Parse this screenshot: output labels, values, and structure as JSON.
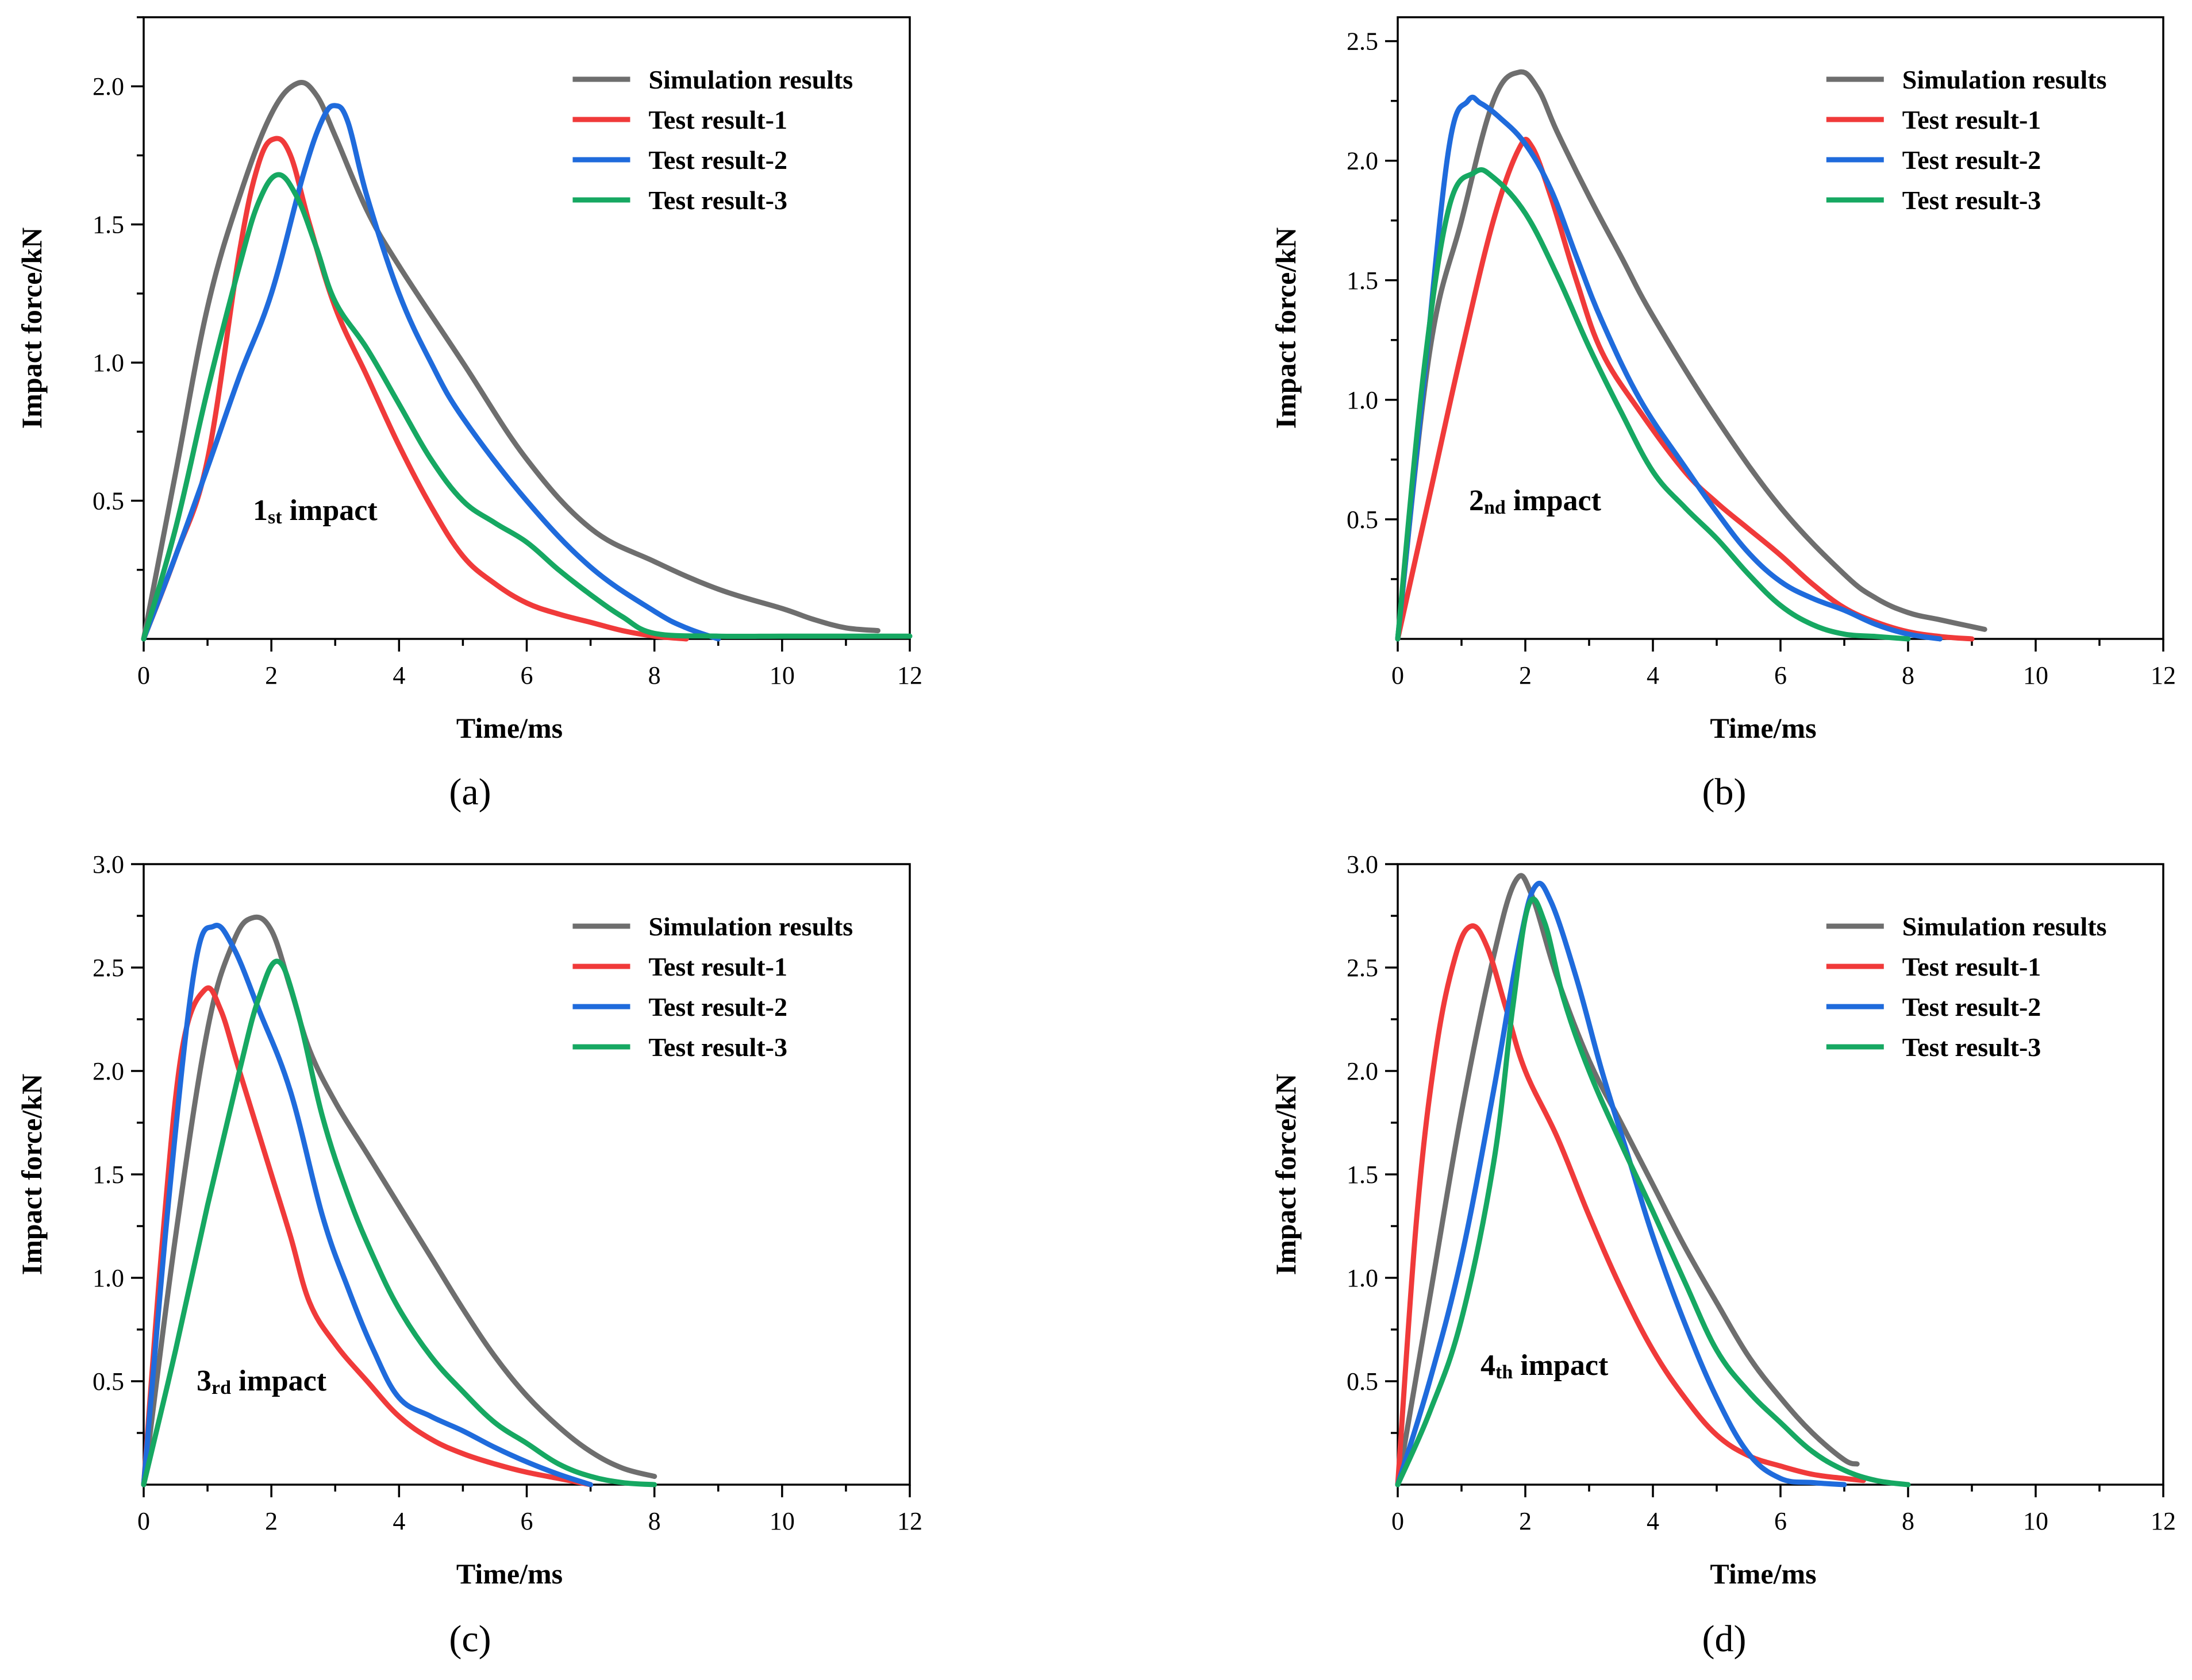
{
  "chart_data": [
    {
      "type": "line",
      "caption": "a",
      "annotation": {
        "main": "1",
        "sub": "st",
        "rest": " impact"
      },
      "xlabel": "Time/ms",
      "ylabel": "Impact force/kN",
      "xlim": [
        0,
        12
      ],
      "ylim": [
        0,
        2.25
      ],
      "xticks": [
        0,
        2,
        4,
        6,
        8,
        10,
        12
      ],
      "yticks": [
        0.5,
        1.0,
        1.5,
        2.0
      ],
      "yticklabels": [
        "0.5",
        "1.0",
        "1.5",
        "2.0"
      ],
      "legend": "top-right",
      "series": [
        {
          "name": "Simulation results",
          "color": "#6e6e6e",
          "x": [
            0,
            0.5,
            1.0,
            1.5,
            2.0,
            2.4,
            2.7,
            3.0,
            3.5,
            4.0,
            5.0,
            6.0,
            7.0,
            8.0,
            9.0,
            10.0,
            10.5,
            11.0,
            11.5
          ],
          "y": [
            0,
            0.6,
            1.2,
            1.6,
            1.9,
            2.01,
            1.97,
            1.82,
            1.55,
            1.35,
            1.0,
            0.65,
            0.4,
            0.28,
            0.18,
            0.11,
            0.07,
            0.04,
            0.03
          ]
        },
        {
          "name": "Test result-1",
          "color": "#f03a3a",
          "x": [
            0,
            0.5,
            1.0,
            1.5,
            1.8,
            2.05,
            2.3,
            2.6,
            3.0,
            3.5,
            4.0,
            4.5,
            5.0,
            5.5,
            6.0,
            6.5,
            7.0,
            7.5,
            8.0,
            8.5
          ],
          "y": [
            0,
            0.3,
            0.65,
            1.4,
            1.72,
            1.81,
            1.75,
            1.5,
            1.2,
            0.95,
            0.7,
            0.48,
            0.3,
            0.2,
            0.13,
            0.09,
            0.06,
            0.03,
            0.01,
            0
          ]
        },
        {
          "name": "Test result-2",
          "color": "#1f6bdc",
          "x": [
            0,
            0.5,
            1.0,
            1.5,
            2.0,
            2.5,
            2.8,
            3.0,
            3.2,
            3.5,
            4.0,
            4.5,
            5.0,
            6.0,
            7.0,
            8.0,
            8.5,
            9.0
          ],
          "y": [
            0,
            0.3,
            0.62,
            0.95,
            1.25,
            1.68,
            1.88,
            1.93,
            1.87,
            1.6,
            1.25,
            1.0,
            0.8,
            0.5,
            0.26,
            0.1,
            0.04,
            0
          ]
        },
        {
          "name": "Test result-3",
          "color": "#16a862",
          "x": [
            0,
            0.5,
            1.0,
            1.5,
            1.8,
            2.1,
            2.4,
            2.7,
            3.0,
            3.5,
            4.0,
            4.5,
            5.0,
            5.5,
            6.0,
            6.5,
            7.0,
            7.5,
            8.0,
            9.0,
            10.0,
            11.0,
            12.0
          ],
          "y": [
            0,
            0.4,
            0.9,
            1.35,
            1.58,
            1.68,
            1.6,
            1.42,
            1.22,
            1.05,
            0.85,
            0.65,
            0.5,
            0.42,
            0.35,
            0.25,
            0.16,
            0.08,
            0.02,
            0.01,
            0.01,
            0.01,
            0.01
          ]
        }
      ]
    },
    {
      "type": "line",
      "caption": "b",
      "annotation": {
        "main": "2",
        "sub": "nd",
        "rest": " impact"
      },
      "xlabel": "Time/ms",
      "ylabel": "Impact force/kN",
      "xlim": [
        0,
        12
      ],
      "ylim": [
        0,
        2.6
      ],
      "xticks": [
        0,
        2,
        4,
        6,
        8,
        10,
        12
      ],
      "yticks": [
        0.5,
        1.0,
        1.5,
        2.0,
        2.5
      ],
      "yticklabels": [
        "0.5",
        "1.0",
        "1.5",
        "2.0",
        "2.5"
      ],
      "legend": "top-right",
      "series": [
        {
          "name": "Simulation results",
          "color": "#6e6e6e",
          "x": [
            0,
            0.5,
            1.0,
            1.5,
            1.9,
            2.2,
            2.5,
            3.0,
            3.5,
            4.0,
            5.0,
            6.0,
            7.0,
            7.5,
            8.0,
            8.5,
            9.2
          ],
          "y": [
            0,
            1.2,
            1.75,
            2.25,
            2.37,
            2.3,
            2.12,
            1.85,
            1.6,
            1.35,
            0.92,
            0.55,
            0.27,
            0.17,
            0.11,
            0.08,
            0.04
          ]
        },
        {
          "name": "Test result-1",
          "color": "#f03a3a",
          "x": [
            0,
            0.5,
            1.0,
            1.5,
            1.9,
            2.1,
            2.4,
            2.8,
            3.2,
            3.8,
            4.5,
            5.0,
            5.5,
            6.0,
            6.5,
            7.0,
            7.5,
            8.0,
            8.5,
            9.0
          ],
          "y": [
            0,
            0.6,
            1.2,
            1.75,
            2.05,
            2.06,
            1.85,
            1.5,
            1.2,
            0.95,
            0.7,
            0.57,
            0.46,
            0.35,
            0.23,
            0.13,
            0.07,
            0.03,
            0.01,
            0
          ]
        },
        {
          "name": "Test result-2",
          "color": "#1f6bdc",
          "x": [
            0,
            0.4,
            0.8,
            1.1,
            1.3,
            1.6,
            2.0,
            2.4,
            2.8,
            3.2,
            3.8,
            4.5,
            5.0,
            5.5,
            6.0,
            6.5,
            7.0,
            7.5,
            8.0,
            8.5
          ],
          "y": [
            0,
            1.05,
            2.05,
            2.25,
            2.24,
            2.18,
            2.07,
            1.88,
            1.6,
            1.33,
            1.0,
            0.72,
            0.53,
            0.36,
            0.24,
            0.17,
            0.12,
            0.06,
            0.02,
            0
          ]
        },
        {
          "name": "Test result-3",
          "color": "#16a862",
          "x": [
            0,
            0.4,
            0.8,
            1.2,
            1.5,
            2.0,
            2.5,
            3.0,
            3.5,
            4.0,
            4.5,
            5.0,
            5.5,
            6.0,
            6.5,
            7.0,
            7.5,
            8.0
          ],
          "y": [
            0,
            1.1,
            1.8,
            1.95,
            1.93,
            1.78,
            1.52,
            1.22,
            0.95,
            0.7,
            0.55,
            0.42,
            0.27,
            0.14,
            0.06,
            0.02,
            0.01,
            0
          ]
        }
      ]
    },
    {
      "type": "line",
      "caption": "c",
      "annotation": {
        "main": "3",
        "sub": "rd",
        "rest": " impact"
      },
      "xlabel": "Time/ms",
      "ylabel": "Impact force/kN",
      "xlim": [
        0,
        12
      ],
      "ylim": [
        0,
        3.0
      ],
      "xticks": [
        0,
        2,
        4,
        6,
        8,
        10,
        12
      ],
      "yticks": [
        0.5,
        1.0,
        1.5,
        2.0,
        2.5,
        3.0
      ],
      "yticklabels": [
        "0.5",
        "1.0",
        "1.5",
        "2.0",
        "2.5",
        "3.0"
      ],
      "legend": "top-right",
      "series": [
        {
          "name": "Simulation results",
          "color": "#6e6e6e",
          "x": [
            0,
            0.5,
            1.0,
            1.4,
            1.7,
            2.0,
            2.3,
            2.6,
            3.0,
            3.5,
            4.0,
            4.5,
            5.0,
            5.5,
            6.0,
            6.5,
            7.0,
            7.5,
            8.0
          ],
          "y": [
            0,
            1.2,
            2.2,
            2.62,
            2.74,
            2.68,
            2.4,
            2.1,
            1.85,
            1.6,
            1.35,
            1.1,
            0.85,
            0.62,
            0.43,
            0.28,
            0.16,
            0.08,
            0.04
          ]
        },
        {
          "name": "Test result-1",
          "color": "#f03a3a",
          "x": [
            0,
            0.3,
            0.6,
            0.95,
            1.2,
            1.5,
            2.0,
            2.3,
            2.6,
            3.0,
            3.5,
            4.0,
            4.5,
            5.0,
            5.5,
            6.0,
            6.5,
            7.0
          ],
          "y": [
            0,
            1.2,
            2.1,
            2.39,
            2.3,
            2.0,
            1.5,
            1.2,
            0.88,
            0.68,
            0.5,
            0.33,
            0.22,
            0.15,
            0.1,
            0.06,
            0.03,
            0
          ]
        },
        {
          "name": "Test result-2",
          "color": "#1f6bdc",
          "x": [
            0,
            0.4,
            0.8,
            1.1,
            1.4,
            1.8,
            2.3,
            2.8,
            3.2,
            3.6,
            4.0,
            4.5,
            5.0,
            5.5,
            6.0,
            6.5,
            7.0
          ],
          "y": [
            0,
            1.4,
            2.5,
            2.7,
            2.6,
            2.3,
            1.9,
            1.3,
            0.95,
            0.65,
            0.42,
            0.33,
            0.26,
            0.18,
            0.11,
            0.05,
            0
          ]
        },
        {
          "name": "Test result-3",
          "color": "#16a862",
          "x": [
            0,
            0.5,
            1.0,
            1.5,
            1.8,
            2.1,
            2.4,
            2.8,
            3.2,
            3.6,
            4.0,
            4.5,
            5.0,
            5.5,
            6.0,
            6.5,
            7.0,
            7.5,
            8.0
          ],
          "y": [
            0,
            0.65,
            1.35,
            2.0,
            2.35,
            2.53,
            2.3,
            1.78,
            1.4,
            1.1,
            0.85,
            0.62,
            0.45,
            0.3,
            0.2,
            0.1,
            0.04,
            0.01,
            0
          ]
        }
      ]
    },
    {
      "type": "line",
      "caption": "d",
      "annotation": {
        "main": "4",
        "sub": "th",
        "rest": " impact"
      },
      "xlabel": "Time/ms",
      "ylabel": "Impact force/kN",
      "xlim": [
        0,
        12
      ],
      "ylim": [
        0,
        3.0
      ],
      "xticks": [
        0,
        2,
        4,
        6,
        8,
        10,
        12
      ],
      "yticks": [
        0.5,
        1.0,
        1.5,
        2.0,
        2.5,
        3.0
      ],
      "yticklabels": [
        "0.5",
        "1.0",
        "1.5",
        "2.0",
        "2.5",
        "3.0"
      ],
      "legend": "top-right",
      "series": [
        {
          "name": "Simulation results",
          "color": "#6e6e6e",
          "x": [
            0,
            0.5,
            1.0,
            1.5,
            1.85,
            2.1,
            2.5,
            3.0,
            3.5,
            4.0,
            4.5,
            5.0,
            5.5,
            6.0,
            6.5,
            7.0,
            7.2
          ],
          "y": [
            0,
            0.9,
            1.8,
            2.55,
            2.92,
            2.85,
            2.45,
            2.05,
            1.75,
            1.45,
            1.15,
            0.88,
            0.62,
            0.42,
            0.25,
            0.12,
            0.1
          ]
        },
        {
          "name": "Test result-1",
          "color": "#f03a3a",
          "x": [
            0,
            0.3,
            0.6,
            0.9,
            1.15,
            1.4,
            1.7,
            2.0,
            2.5,
            3.0,
            3.5,
            4.0,
            4.5,
            5.0,
            5.5,
            6.0,
            6.5,
            7.0,
            7.3
          ],
          "y": [
            0,
            1.3,
            2.1,
            2.55,
            2.7,
            2.6,
            2.3,
            2.0,
            1.68,
            1.3,
            0.95,
            0.65,
            0.42,
            0.24,
            0.14,
            0.09,
            0.05,
            0.03,
            0.02
          ]
        },
        {
          "name": "Test result-2",
          "color": "#1f6bdc",
          "x": [
            0,
            0.5,
            1.0,
            1.5,
            1.9,
            2.15,
            2.4,
            2.8,
            3.2,
            3.6,
            4.0,
            4.5,
            5.0,
            5.5,
            6.0,
            6.5,
            7.0
          ],
          "y": [
            0,
            0.5,
            1.1,
            1.9,
            2.6,
            2.89,
            2.82,
            2.45,
            2.0,
            1.6,
            1.2,
            0.78,
            0.42,
            0.15,
            0.03,
            0.01,
            0
          ]
        },
        {
          "name": "Test result-3",
          "color": "#16a862",
          "x": [
            0,
            0.5,
            1.0,
            1.5,
            1.8,
            2.05,
            2.3,
            2.6,
            3.0,
            3.5,
            4.0,
            4.5,
            5.0,
            5.5,
            6.0,
            6.5,
            7.0,
            7.5,
            8.0
          ],
          "y": [
            0,
            0.35,
            0.8,
            1.55,
            2.3,
            2.8,
            2.72,
            2.35,
            2.0,
            1.65,
            1.32,
            0.98,
            0.65,
            0.45,
            0.3,
            0.16,
            0.07,
            0.02,
            0
          ]
        }
      ]
    }
  ]
}
